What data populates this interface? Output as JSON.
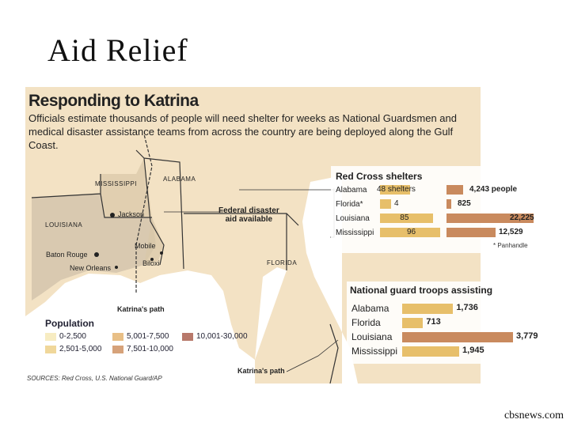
{
  "slide_title": "Aid Relief",
  "credit": "cbsnews.com",
  "graphic": {
    "title": "Responding to Katrina",
    "subtitle": "Officials estimate thousands of people will need shelter for weeks as National Guardsmen and medical disaster assistance teams from across the country are being deployed along the Gulf Coast.",
    "map_labels": {
      "mississippi": "MISSISSIPPI",
      "alabama": "ALABAMA",
      "louisiana": "LOUISIANA",
      "florida": "FLORIDA"
    },
    "cities": {
      "jackson": "Jackson",
      "mobile": "Mobile",
      "baton_rouge": "Baton Rouge",
      "biloxi": "Biloxi",
      "new_orleans": "New Orleans"
    },
    "annotations": {
      "federal_line1": "Federal disaster",
      "federal_line2": "aid available",
      "path1": "Katrina's path",
      "path2": "Katrina's path"
    },
    "legend": {
      "title": "Population",
      "items": [
        {
          "label": "0-2,500",
          "color": "#f7ecc2"
        },
        {
          "label": "2,501-5,000",
          "color": "#f0d79a"
        },
        {
          "label": "5,001-7,500",
          "color": "#e8bf86"
        },
        {
          "label": "7,501-10,000",
          "color": "#d6a27a"
        },
        {
          "label": "10,001-30,000",
          "color": "#b8796b"
        }
      ]
    },
    "sources": "SOURCES: Red Cross, U.S. National Guard/AP"
  },
  "colors": {
    "bar_gold": "#e7bf6a",
    "bar_brown": "#c98a5e",
    "land": "#f3e2c4",
    "water": "#ffffff"
  },
  "chart_data": [
    {
      "type": "bar",
      "title": "Red Cross shelters",
      "categories": [
        "Alabama",
        "Florida*",
        "Louisiana",
        "Mississippi"
      ],
      "series": [
        {
          "name": "shelters",
          "values": [
            48,
            4,
            85,
            96
          ],
          "labels": [
            "48 shelters",
            "4",
            "85",
            "96"
          ]
        },
        {
          "name": "people",
          "values": [
            4243,
            825,
            22225,
            12529
          ],
          "labels": [
            "4,243 people",
            "825",
            "22,225",
            "12,529"
          ]
        }
      ],
      "footnote": "* Panhandle"
    },
    {
      "type": "bar",
      "title": "National guard troops assisting",
      "categories": [
        "Alabama",
        "Florida",
        "Louisiana",
        "Mississippi"
      ],
      "values": [
        1736,
        713,
        3779,
        1945
      ],
      "labels": [
        "1,736",
        "713",
        "3,779",
        "1,945"
      ]
    }
  ]
}
